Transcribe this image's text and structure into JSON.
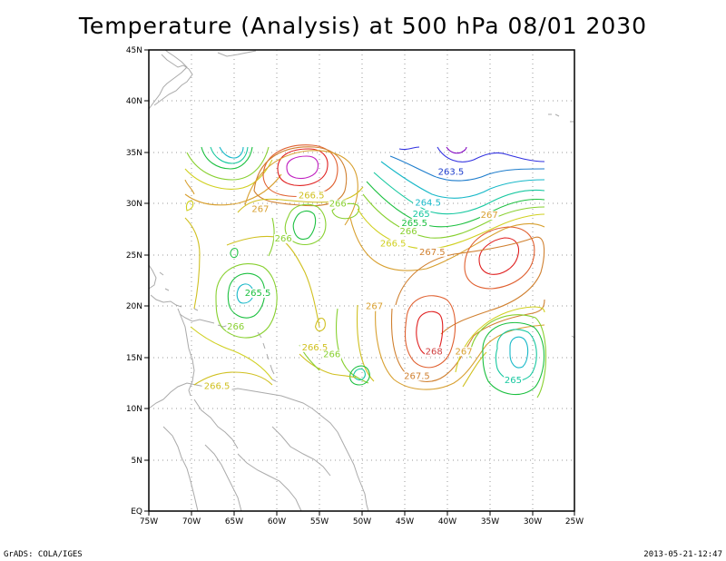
{
  "title": "Temperature (Analysis) at 500 hPa 08/01 2030",
  "footer": {
    "left": "GrADS: COLA/IGES",
    "right": "2013-05-21-12:47"
  },
  "map": {
    "lon_range": [
      -75,
      -25
    ],
    "lat_range": [
      0,
      45
    ],
    "lon_tick_labels": [
      "75W",
      "70W",
      "65W",
      "60W",
      "55W",
      "50W",
      "45W",
      "40W",
      "35W",
      "30W",
      "25W"
    ],
    "lat_tick_labels": [
      "EQ",
      "5N",
      "10N",
      "15N",
      "20N",
      "25N",
      "30N",
      "35N",
      "40N",
      "45N"
    ],
    "gridlines": true,
    "coastline_color": "#aaaaaa",
    "contour_labels": [
      {
        "text": "263.5",
        "lon": -39.5,
        "lat": 32.8,
        "color": "#1c3ccc"
      },
      {
        "text": "264.5",
        "lon": -42.2,
        "lat": 29.8,
        "color": "#17b8c8"
      },
      {
        "text": "265",
        "lon": -43.0,
        "lat": 28.7,
        "color": "#17c8a0"
      },
      {
        "text": "265.5",
        "lon": -43.8,
        "lat": 27.8,
        "color": "#1cc040"
      },
      {
        "text": "266",
        "lon": -44.5,
        "lat": 27.0,
        "color": "#88d030"
      },
      {
        "text": "266.5",
        "lon": -46.3,
        "lat": 25.8,
        "color": "#d0d020"
      },
      {
        "text": "267.5",
        "lon": -41.7,
        "lat": 25.0,
        "color": "#d08030"
      },
      {
        "text": "267",
        "lon": -35.0,
        "lat": 28.6,
        "color": "#d8a030"
      },
      {
        "text": "266.5",
        "lon": -55.9,
        "lat": 30.5,
        "color": "#d0c020"
      },
      {
        "text": "266",
        "lon": -52.8,
        "lat": 29.7,
        "color": "#88d030"
      },
      {
        "text": "267",
        "lon": -61.9,
        "lat": 29.2,
        "color": "#d8a030"
      },
      {
        "text": "266",
        "lon": -59.2,
        "lat": 26.3,
        "color": "#88d030"
      },
      {
        "text": "265.5",
        "lon": -62.2,
        "lat": 21.0,
        "color": "#1cc040"
      },
      {
        "text": "266",
        "lon": -64.8,
        "lat": 17.7,
        "color": "#88d030"
      },
      {
        "text": "267",
        "lon": -48.5,
        "lat": 19.7,
        "color": "#d8a030"
      },
      {
        "text": "266.5",
        "lon": -55.5,
        "lat": 15.7,
        "color": "#d0c020"
      },
      {
        "text": "266",
        "lon": -53.5,
        "lat": 15.0,
        "color": "#88d030"
      },
      {
        "text": "268",
        "lon": -41.5,
        "lat": 15.3,
        "color": "#d04040"
      },
      {
        "text": "267",
        "lon": -38.0,
        "lat": 15.3,
        "color": "#d8a030"
      },
      {
        "text": "267.5",
        "lon": -43.5,
        "lat": 12.9,
        "color": "#d08030"
      },
      {
        "text": "265",
        "lon": -32.2,
        "lat": 12.5,
        "color": "#17c8a0"
      },
      {
        "text": "266.5",
        "lon": -67.0,
        "lat": 11.9,
        "color": "#d0c020"
      }
    ]
  }
}
